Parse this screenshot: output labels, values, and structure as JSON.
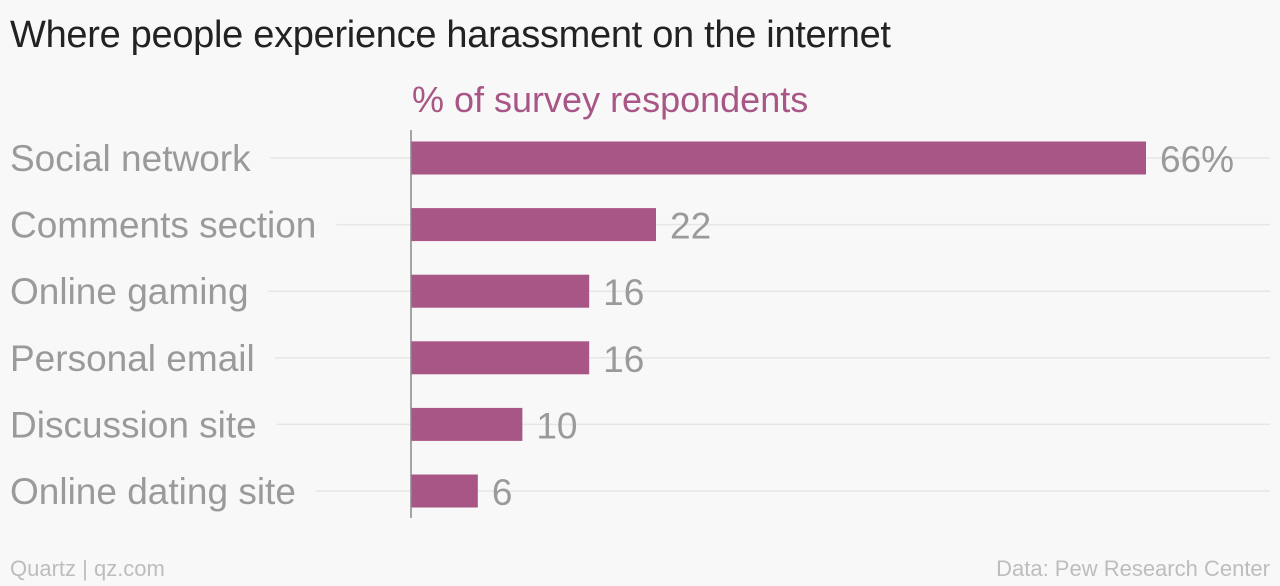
{
  "title": "Where people experience harassment on the internet",
  "footer": {
    "source_left": "Quartz | qz.com",
    "source_right": "Data: Pew Research Center"
  },
  "colors": {
    "bar": "#a85685",
    "subtitle": "#a85685",
    "label": "#9a9a9a",
    "grid": "#e6e6e6",
    "axis": "#888888"
  },
  "chart_data": {
    "type": "bar",
    "orientation": "horizontal",
    "subtitle": "% of survey respondents",
    "categories": [
      "Social network",
      "Comments section",
      "Online gaming",
      "Personal email",
      "Discussion site",
      "Online dating site"
    ],
    "values": [
      66,
      22,
      16,
      16,
      10,
      6
    ],
    "value_labels": [
      "66%",
      "22",
      "16",
      "16",
      "10",
      "6"
    ],
    "xlim": [
      0,
      66
    ],
    "grid": true,
    "legend": "none"
  }
}
